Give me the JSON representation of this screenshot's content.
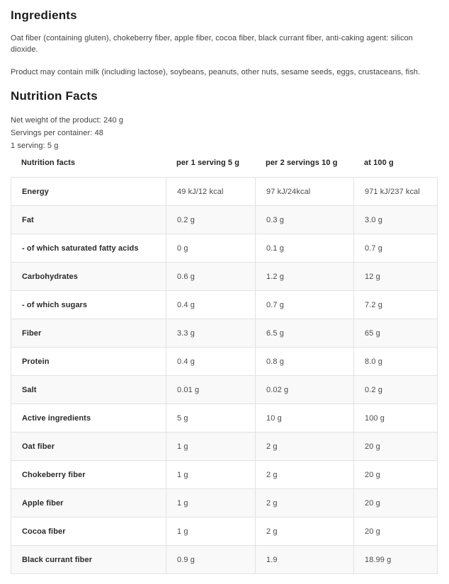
{
  "ingredients": {
    "title": "Ingredients",
    "composition": "Oat fiber (containing gluten), chokeberry fiber, apple fiber, cocoa fiber, black currant fiber, anti-caking agent: silicon dioxide.",
    "allergens": "Product may contain milk (including lactose), soybeans, peanuts, other nuts, sesame seeds, eggs, crustaceans, fish."
  },
  "nutrition": {
    "title": "Nutrition Facts",
    "net_weight": "Net weight of the product: 240 g",
    "servings_per_container": "Servings per container: 48",
    "serving_size": "1 serving: 5 g",
    "table": {
      "columns": [
        "Nutrition facts",
        "per 1 serving 5 g",
        "per 2 servings 10 g",
        "at 100 g"
      ],
      "rows": [
        {
          "label": "Energy",
          "values": [
            "49 kJ/12 kcal",
            "97 kJ/24kcal",
            "971 kJ/237 kcal"
          ]
        },
        {
          "label": "Fat",
          "values": [
            "0.2 g",
            "0.3 g",
            "3.0 g"
          ]
        },
        {
          "label": "- of which saturated fatty acids",
          "values": [
            "0 g",
            "0.1 g",
            "0.7 g"
          ]
        },
        {
          "label": "Carbohydrates",
          "values": [
            "0.6 g",
            "1.2 g",
            "12 g"
          ]
        },
        {
          "label": "- of which sugars",
          "values": [
            "0.4 g",
            "0.7 g",
            "7.2 g"
          ]
        },
        {
          "label": "Fiber",
          "values": [
            "3.3 g",
            "6.5 g",
            "65 g"
          ]
        },
        {
          "label": "Protein",
          "values": [
            "0.4 g",
            "0.8 g",
            "8.0 g"
          ]
        },
        {
          "label": "Salt",
          "values": [
            "0.01 g",
            "0.02 g",
            "0.2 g"
          ]
        },
        {
          "label": "Active ingredients",
          "values": [
            "5 g",
            "10 g",
            "100 g"
          ]
        },
        {
          "label": "Oat fiber",
          "values": [
            "1 g",
            "2 g",
            "20 g"
          ]
        },
        {
          "label": "Chokeberry fiber",
          "values": [
            "1 g",
            "2 g",
            "20 g"
          ]
        },
        {
          "label": "Apple fiber",
          "values": [
            "1 g",
            "2 g",
            "20 g"
          ]
        },
        {
          "label": "Cocoa fiber",
          "values": [
            "1 g",
            "2 g",
            "20 g"
          ]
        },
        {
          "label": "Black currant fiber",
          "values": [
            "0.9 g",
            "1.9",
            "18.99 g"
          ]
        }
      ]
    },
    "colors": {
      "border": "#e2e2e2",
      "alt_row_bg": "#f9f9f9",
      "heading_text": "#1d1d1d",
      "body_text": "#414141"
    }
  }
}
